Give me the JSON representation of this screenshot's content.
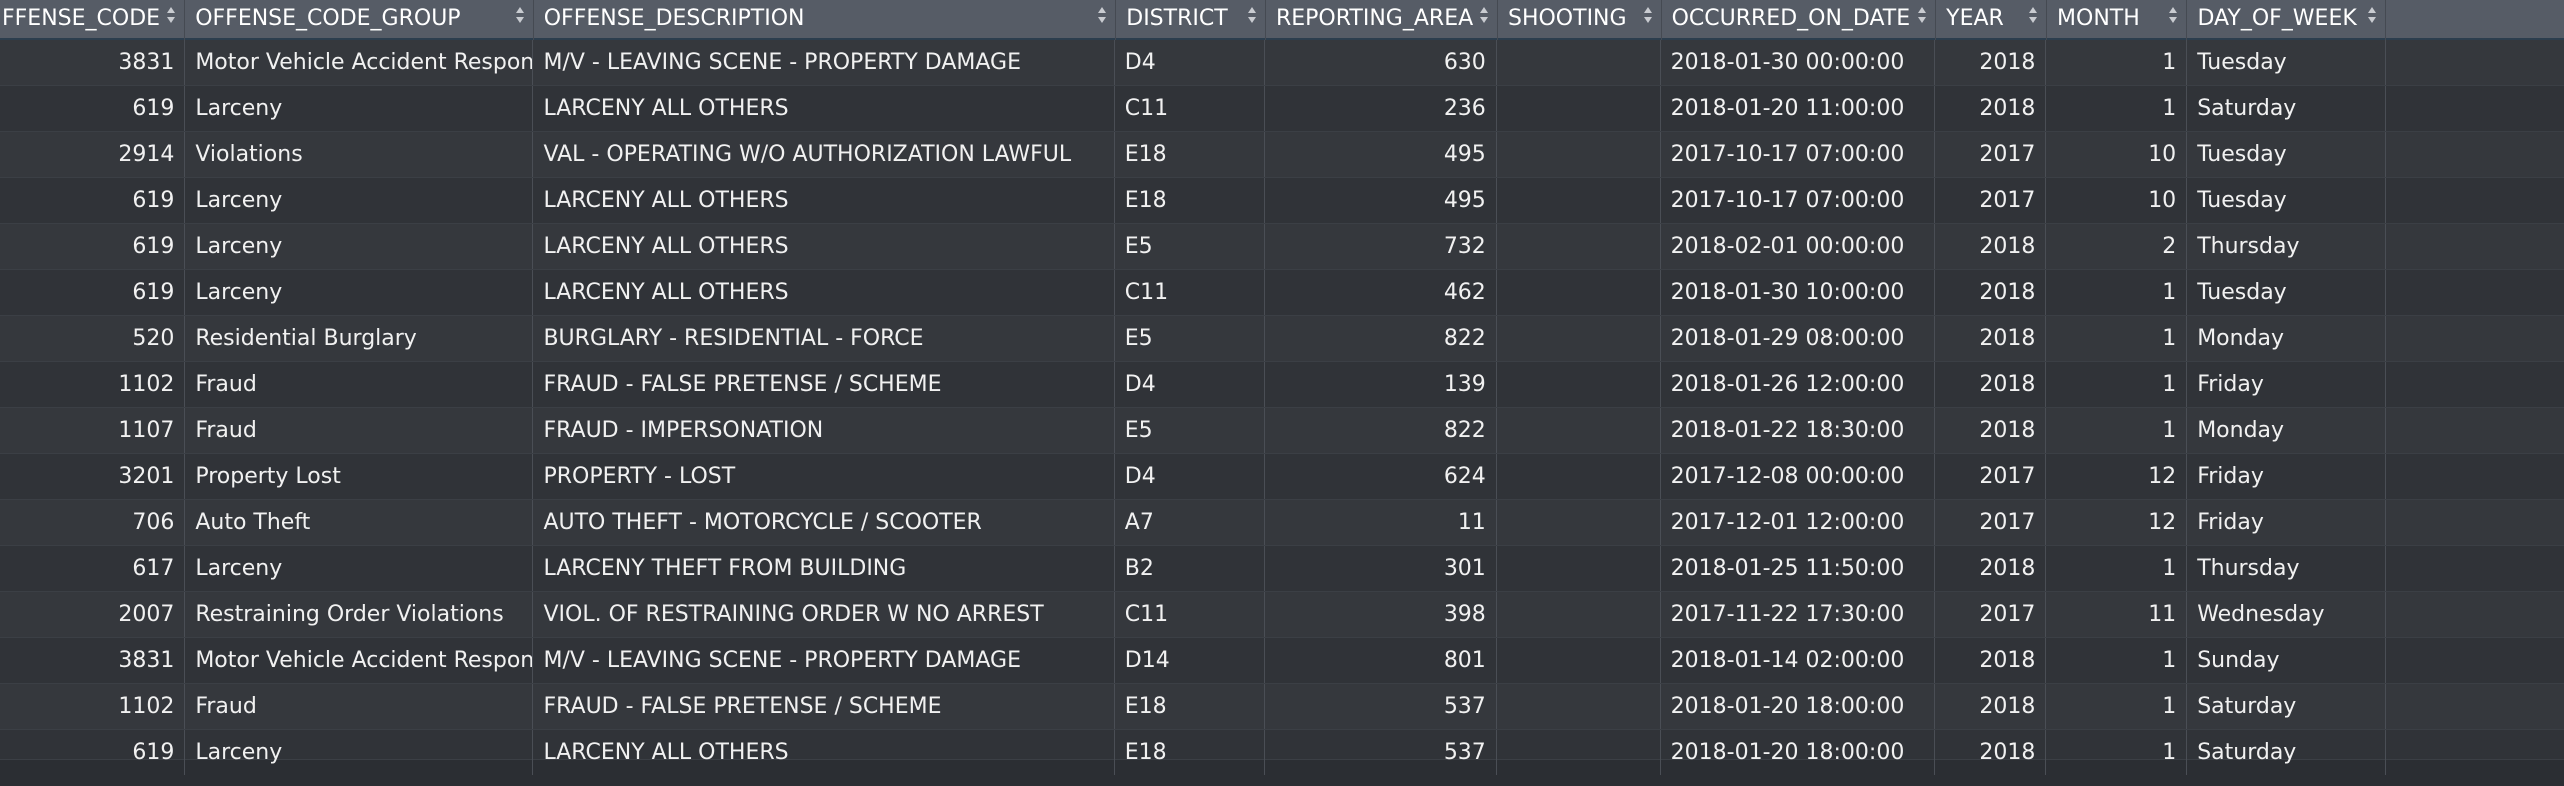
{
  "columns": [
    "FFENSE_CODE",
    "OFFENSE_CODE_GROUP",
    "OFFENSE_DESCRIPTION",
    "DISTRICT",
    "REPORTING_AREA",
    "SHOOTING",
    "OCCURRED_ON_DATE",
    "YEAR",
    "MONTH",
    "DAY_OF_WEEK",
    ""
  ],
  "rows": [
    [
      "3831",
      "Motor Vehicle Accident Response",
      "M/V - LEAVING SCENE - PROPERTY DAMAGE",
      "D4",
      "630",
      "",
      "2018-01-30 00:00:00",
      "2018",
      "1",
      "Tuesday",
      ""
    ],
    [
      "619",
      "Larceny",
      "LARCENY ALL OTHERS",
      "C11",
      "236",
      "",
      "2018-01-20 11:00:00",
      "2018",
      "1",
      "Saturday",
      ""
    ],
    [
      "2914",
      "Violations",
      "VAL - OPERATING W/O AUTHORIZATION LAWFUL",
      "E18",
      "495",
      "",
      "2017-10-17 07:00:00",
      "2017",
      "10",
      "Tuesday",
      ""
    ],
    [
      "619",
      "Larceny",
      "LARCENY ALL OTHERS",
      "E18",
      "495",
      "",
      "2017-10-17 07:00:00",
      "2017",
      "10",
      "Tuesday",
      ""
    ],
    [
      "619",
      "Larceny",
      "LARCENY ALL OTHERS",
      "E5",
      "732",
      "",
      "2018-02-01 00:00:00",
      "2018",
      "2",
      "Thursday",
      ""
    ],
    [
      "619",
      "Larceny",
      "LARCENY ALL OTHERS",
      "C11",
      "462",
      "",
      "2018-01-30 10:00:00",
      "2018",
      "1",
      "Tuesday",
      ""
    ],
    [
      "520",
      "Residential Burglary",
      "BURGLARY - RESIDENTIAL - FORCE",
      "E5",
      "822",
      "",
      "2018-01-29 08:00:00",
      "2018",
      "1",
      "Monday",
      ""
    ],
    [
      "1102",
      "Fraud",
      "FRAUD - FALSE PRETENSE / SCHEME",
      "D4",
      "139",
      "",
      "2018-01-26 12:00:00",
      "2018",
      "1",
      "Friday",
      ""
    ],
    [
      "1107",
      "Fraud",
      "FRAUD - IMPERSONATION",
      "E5",
      "822",
      "",
      "2018-01-22 18:30:00",
      "2018",
      "1",
      "Monday",
      ""
    ],
    [
      "3201",
      "Property Lost",
      "PROPERTY - LOST",
      "D4",
      "624",
      "",
      "2017-12-08 00:00:00",
      "2017",
      "12",
      "Friday",
      ""
    ],
    [
      "706",
      "Auto Theft",
      "AUTO THEFT - MOTORCYCLE / SCOOTER",
      "A7",
      "11",
      "",
      "2017-12-01 12:00:00",
      "2017",
      "12",
      "Friday",
      ""
    ],
    [
      "617",
      "Larceny",
      "LARCENY THEFT FROM BUILDING",
      "B2",
      "301",
      "",
      "2018-01-25 11:50:00",
      "2018",
      "1",
      "Thursday",
      ""
    ],
    [
      "2007",
      "Restraining Order Violations",
      "VIOL. OF RESTRAINING ORDER W NO ARREST",
      "C11",
      "398",
      "",
      "2017-11-22 17:30:00",
      "2017",
      "11",
      "Wednesday",
      ""
    ],
    [
      "3831",
      "Motor Vehicle Accident Response",
      "M/V - LEAVING SCENE - PROPERTY DAMAGE",
      "D14",
      "801",
      "",
      "2018-01-14 02:00:00",
      "2018",
      "1",
      "Sunday",
      ""
    ],
    [
      "1102",
      "Fraud",
      "FRAUD - FALSE PRETENSE / SCHEME",
      "E18",
      "537",
      "",
      "2018-01-20 18:00:00",
      "2018",
      "1",
      "Saturday",
      ""
    ],
    [
      "619",
      "Larceny",
      "LARCENY ALL OTHERS",
      "E18",
      "537",
      "",
      "2018-01-20 18:00:00",
      "2018",
      "1",
      "Saturday",
      ""
    ]
  ],
  "numeric_columns": [
    0,
    4,
    7,
    8
  ],
  "sort_icon": "sort-updown-icon",
  "colors": {
    "header_bg": "#565c66",
    "header_text": "#ffffff",
    "row_bg_odd": "#35383d",
    "row_bg_even": "#303338",
    "cell_text": "#f1f1f1",
    "grid_line": "#4a4e55"
  }
}
